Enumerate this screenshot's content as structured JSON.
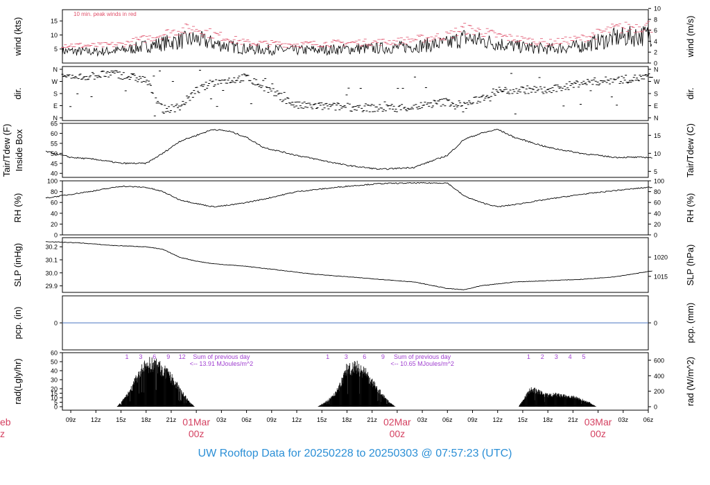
{
  "footer_title": "UW Rooftop Data for 20250228  to  20250303 @ 07:57:23  (UTC)",
  "colors": {
    "axis": "#000000",
    "peak": "#e0506a",
    "date": "#d44060",
    "title": "#2b8fd6",
    "note": "#a040d0",
    "pcp": "#4a74c0"
  },
  "time_axis": {
    "range_hours_from_0600z_28Feb": [
      2,
      72
    ],
    "tick_labels": [
      "09z",
      "12z",
      "15z",
      "18z",
      "21z",
      "03z",
      "06z",
      "09z",
      "12z",
      "15z",
      "18z",
      "21z",
      "03z",
      "06z",
      "09z",
      "12z",
      "15z",
      "18z",
      "21z",
      "03z",
      "06z"
    ],
    "date_labels": [
      {
        "day": "01Mar",
        "zone": "00z"
      },
      {
        "day": "02Mar",
        "zone": "00z"
      },
      {
        "day": "03Mar",
        "zone": "00z"
      }
    ],
    "cut_off_left_labels": [
      "eb",
      "z"
    ]
  },
  "chart_data": [
    {
      "type": "line",
      "name": "wind",
      "ylabel": "wind (kts)",
      "ylabel_right": "wind (m/s)",
      "ylim": [
        0,
        19
      ],
      "ticks_left": [
        "5",
        "10",
        "15"
      ],
      "ticks_right": [
        "0",
        "2",
        "4",
        "6",
        "8",
        "10"
      ],
      "annotation": "10 min. peak winds in red",
      "x_hours": [
        0,
        6,
        9,
        12,
        14,
        16,
        18,
        20,
        24,
        30,
        36,
        42,
        48,
        50,
        52,
        54,
        56,
        60,
        64,
        68,
        72,
        74,
        76,
        78,
        80,
        84,
        90
      ],
      "sustained": [
        4.5,
        4,
        4.5,
        6,
        7,
        8,
        8.5,
        7,
        5,
        4.5,
        5,
        5.5,
        7,
        9,
        8,
        7,
        6,
        5,
        6,
        9,
        10,
        8,
        7,
        6,
        5,
        4.5,
        4.5
      ],
      "peak": [
        6.5,
        6,
        6.5,
        8.5,
        10,
        11.5,
        12,
        10,
        7,
        6.5,
        7,
        7.5,
        9.5,
        12,
        11,
        9.5,
        8.5,
        7,
        8.5,
        12,
        13,
        11,
        10,
        8.5,
        7,
        6.5,
        6.5
      ]
    },
    {
      "type": "scatter",
      "name": "dir",
      "ylabel": "dir.",
      "tick_labels": [
        "N",
        "E",
        "S",
        "W",
        "N"
      ],
      "x_hours": [
        0,
        4,
        8,
        12,
        14,
        16,
        18,
        20,
        24,
        30,
        36,
        40,
        44,
        48,
        50,
        54,
        58,
        60,
        64,
        68,
        72,
        76,
        80,
        84,
        90
      ],
      "dir_deg": [
        270,
        300,
        330,
        280,
        60,
        80,
        200,
        260,
        300,
        90,
        80,
        70,
        80,
        120,
        90,
        200,
        210,
        200,
        260,
        280,
        300,
        330,
        300,
        270,
        200
      ]
    },
    {
      "type": "line",
      "name": "temp",
      "ylabel": [
        "Tair/Tdew (F)",
        "Inside Box"
      ],
      "ylabel_right": "Tair/Tdew (C)",
      "ylim": [
        38,
        65
      ],
      "ticks_left": [
        "40",
        "45",
        "50",
        "55",
        "60",
        "65"
      ],
      "ticks_right": [
        "5",
        "10",
        "15"
      ],
      "x_hours": [
        0,
        3,
        6,
        9,
        12,
        14,
        16,
        18,
        20,
        22,
        24,
        26,
        30,
        36,
        40,
        44,
        48,
        50,
        52,
        54,
        56,
        60,
        64,
        68,
        72,
        74,
        76,
        78,
        80,
        84,
        88,
        90
      ],
      "values": [
        51,
        48,
        47,
        45,
        45,
        50,
        56,
        59,
        62,
        61,
        58,
        53,
        49,
        44,
        42,
        43,
        49,
        57,
        60,
        62,
        58,
        53,
        50,
        48,
        48,
        47,
        49,
        50,
        50,
        50,
        49,
        49
      ]
    },
    {
      "type": "line",
      "name": "rh",
      "ylabel": "RH (%)",
      "ylabel_right": "RH (%)",
      "ylim": [
        0,
        100
      ],
      "ticks_left": [
        "0",
        "20",
        "40",
        "60",
        "80",
        "100"
      ],
      "ticks_right": [
        "0",
        "20",
        "40",
        "60",
        "80",
        "100"
      ],
      "x_hours": [
        0,
        3,
        6,
        9,
        12,
        14,
        16,
        18,
        20,
        22,
        24,
        26,
        30,
        36,
        40,
        44,
        48,
        50,
        52,
        54,
        56,
        60,
        64,
        68,
        72,
        76,
        80,
        84,
        88,
        90
      ],
      "values": [
        68,
        75,
        82,
        90,
        88,
        80,
        65,
        58,
        52,
        55,
        60,
        66,
        80,
        90,
        95,
        96,
        96,
        72,
        60,
        52,
        56,
        66,
        75,
        82,
        88,
        86,
        80,
        78,
        80,
        80
      ]
    },
    {
      "type": "line",
      "name": "slp",
      "ylabel": "SLP (inHg)",
      "ylabel_right": "SLP (hPa)",
      "ylim": [
        29.85,
        30.27
      ],
      "ticks_left": [
        "29.9",
        "30.0",
        "30.1",
        "30.2"
      ],
      "ticks_right": [
        "1015",
        "1020"
      ],
      "x_hours": [
        0,
        4,
        8,
        12,
        14,
        16,
        18,
        20,
        24,
        28,
        32,
        36,
        40,
        44,
        48,
        50,
        52,
        56,
        60,
        64,
        68,
        72,
        76,
        80,
        84,
        90
      ],
      "values": [
        30.24,
        30.23,
        30.21,
        30.2,
        30.18,
        30.12,
        30.09,
        30.07,
        30.05,
        30.02,
        29.99,
        29.97,
        29.95,
        29.93,
        29.88,
        29.87,
        29.9,
        29.93,
        29.94,
        29.95,
        29.97,
        30.01,
        30.04,
        30.06,
        30.08,
        30.09
      ]
    },
    {
      "type": "line",
      "name": "pcp",
      "ylabel": "pcp. (in)",
      "ylabel_right": "pcp. (mm)",
      "ylim": [
        -1,
        1
      ],
      "ticks_left": [
        "0"
      ],
      "ticks_right": [
        "0"
      ],
      "x_hours": [
        0,
        90
      ],
      "values": [
        0,
        0
      ]
    },
    {
      "type": "area",
      "name": "rad",
      "ylabel": "rad(Lgly/hr)",
      "ylabel_right": "rad (W/m^2)",
      "ylim": [
        0,
        60
      ],
      "ticks_left": [
        "0",
        "5",
        "10",
        "15",
        "20",
        "30",
        "40",
        "50",
        "60"
      ],
      "ticks_right": [
        "0",
        "200",
        "400",
        "600"
      ],
      "days": [
        {
          "x_hours": [
            8.5,
            9,
            10,
            11,
            12,
            13,
            14,
            15,
            16,
            17,
            17.8
          ],
          "values": [
            0,
            5,
            18,
            38,
            52,
            54,
            46,
            36,
            22,
            8,
            0
          ],
          "hour_markers": [
            "1",
            "3",
            "6",
            "9",
            "12"
          ],
          "note": [
            "Sum of previous day",
            "<-- 13.91 MJoules/m^2"
          ]
        },
        {
          "x_hours": [
            32.5,
            33,
            34,
            35,
            36,
            37,
            38,
            39,
            40,
            41,
            41.8
          ],
          "values": [
            0,
            3,
            10,
            22,
            48,
            50,
            45,
            30,
            18,
            6,
            0
          ],
          "hour_markers": [
            "1",
            "3",
            "6",
            "9"
          ],
          "note": [
            "Sum of previous day",
            "<-- 10.65 MJoules/m^2"
          ]
        },
        {
          "x_hours": [
            56.5,
            57,
            58,
            59,
            60,
            61,
            62,
            63,
            64,
            65,
            65.8
          ],
          "values": [
            0,
            8,
            22,
            18,
            14,
            15,
            13,
            12,
            9,
            5,
            0
          ],
          "hour_markers": [
            "1",
            "2",
            "3",
            "4",
            "5"
          ],
          "note": []
        }
      ]
    }
  ]
}
